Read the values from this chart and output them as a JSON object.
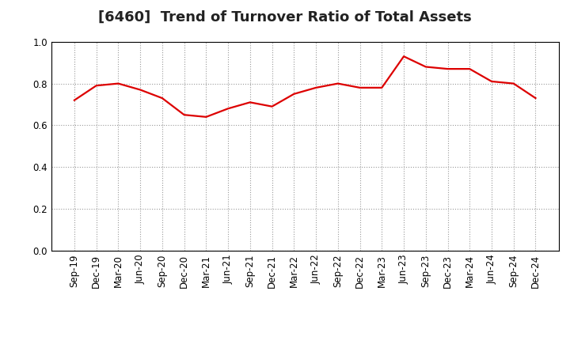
{
  "title": "[6460]  Trend of Turnover Ratio of Total Assets",
  "x_labels": [
    "Sep-19",
    "Dec-19",
    "Mar-20",
    "Jun-20",
    "Sep-20",
    "Dec-20",
    "Mar-21",
    "Jun-21",
    "Sep-21",
    "Dec-21",
    "Mar-22",
    "Jun-22",
    "Sep-22",
    "Dec-22",
    "Mar-23",
    "Jun-23",
    "Sep-23",
    "Dec-23",
    "Mar-24",
    "Jun-24",
    "Sep-24",
    "Dec-24"
  ],
  "values": [
    0.72,
    0.79,
    0.8,
    0.77,
    0.73,
    0.65,
    0.64,
    0.68,
    0.71,
    0.69,
    0.75,
    0.78,
    0.8,
    0.78,
    0.78,
    0.93,
    0.88,
    0.87,
    0.87,
    0.81,
    0.8,
    0.73
  ],
  "line_color": "#dd0000",
  "line_width": 1.6,
  "ylim": [
    0.0,
    1.0
  ],
  "yticks": [
    0.0,
    0.2,
    0.4,
    0.6,
    0.8,
    1.0
  ],
  "grid_color": "#999999",
  "background_color": "#ffffff",
  "title_fontsize": 13,
  "tick_fontsize": 8.5,
  "title_color": "#222222"
}
